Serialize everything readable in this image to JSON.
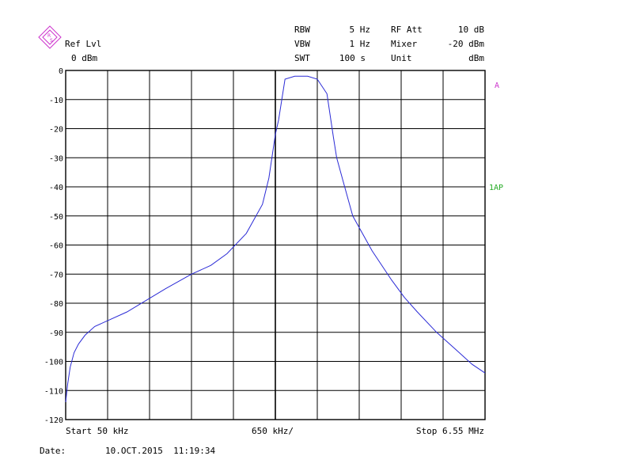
{
  "header": {
    "ref_lvl_label": "Ref Lvl",
    "ref_lvl_value": "0 dBm",
    "rbw_label": "RBW",
    "rbw_value": "5 Hz",
    "vbw_label": "VBW",
    "vbw_value": "1 Hz",
    "swt_label": "SWT",
    "swt_value": "100 s",
    "rf_att_label": "RF Att",
    "rf_att_value": "10 dB",
    "mixer_label": "Mixer",
    "mixer_value": "-20 dBm",
    "unit_label": "Unit",
    "unit_value": "dBm"
  },
  "markers": {
    "trace_a": "A",
    "trace_1ap": "1AP"
  },
  "footer": {
    "start": "Start 50 kHz",
    "center": "650 kHz/",
    "stop": "Stop 6.55 MHz",
    "date_label": "Date:",
    "date_value": "10.OCT.2015  11:19:34"
  },
  "colors": {
    "trace": "#2b2bd6",
    "marker_a": "#cc33cc",
    "marker_1ap": "#22aa22",
    "logo": "#cc33cc"
  },
  "chart_data": {
    "type": "line",
    "xlabel": "",
    "ylabel": "",
    "xlim": [
      0.05,
      6.55
    ],
    "ylim": [
      -120,
      0
    ],
    "grid": true,
    "yticks": [
      "0",
      "-10",
      "-20",
      "-30",
      "-40",
      "-50",
      "-60",
      "-70",
      "-80",
      "-90",
      "-100",
      "-110",
      "-120"
    ],
    "series": [
      {
        "x": [
          0.05,
          0.08,
          0.12,
          0.18,
          0.25,
          0.35,
          0.5,
          0.7,
          1.0,
          1.3,
          1.6,
          2.0,
          2.3,
          2.55,
          2.85,
          3.1,
          3.2,
          3.3,
          3.35,
          3.45,
          3.6,
          3.8,
          3.95,
          4.1,
          4.2,
          4.25,
          4.35,
          4.5,
          4.8,
          5.1,
          5.3,
          5.5,
          5.8,
          6.1,
          6.35,
          6.55
        ],
        "y": [
          -114,
          -108,
          -102,
          -97,
          -94,
          -91,
          -88,
          -86,
          -83,
          -79,
          -75,
          -70,
          -67,
          -63,
          -56,
          -46,
          -37,
          -22,
          -17,
          -3,
          -2,
          -2,
          -3,
          -8,
          -23,
          -30,
          -38,
          -50,
          -62,
          -72,
          -78,
          -83,
          -90,
          -96,
          -101,
          -104
        ]
      }
    ]
  }
}
